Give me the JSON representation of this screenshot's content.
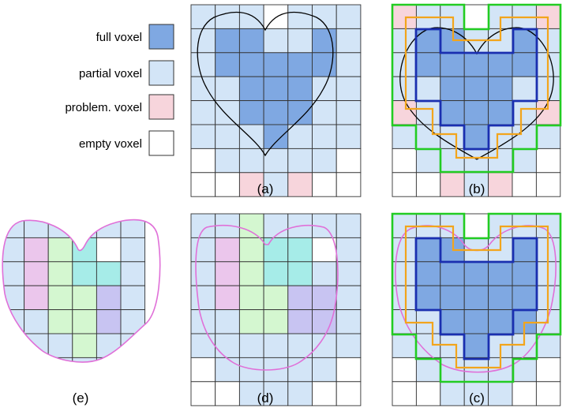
{
  "legend": {
    "items": [
      {
        "label": "full voxel",
        "color": "#7fa8e2"
      },
      {
        "label": "partial voxel",
        "color": "#d3e5f7"
      },
      {
        "label": "problem. voxel",
        "color": "#f7d5dc"
      },
      {
        "label": "empty voxel",
        "color": "#ffffff"
      }
    ]
  },
  "panels": [
    {
      "label": "(a)"
    },
    {
      "label": "(b)"
    },
    {
      "label": "(c)"
    },
    {
      "label": "(d)"
    },
    {
      "label": "(e)"
    }
  ],
  "colors": {
    "full": "#7fa8e2",
    "partial": "#d3e5f7",
    "problem": "#f7d5dc",
    "empty": "#ffffff",
    "grid": "#333333",
    "heart_outline": "#000000",
    "green_boundary": "#22cc22",
    "orange_boundary": "#f2a51c",
    "blue_boundary": "#1a2fb0",
    "smooth_curve": "#e070d8",
    "region_magenta": "#ebc6ec",
    "region_green": "#d4f7d0",
    "region_cyan": "#a6ece8",
    "region_purple": "#c8c4f2"
  },
  "grids": {
    "a": [
      "PPPEPPP",
      "PFFPPFP",
      "PFFFFFP",
      "PPFFFPP",
      "PPFFFPP",
      "PPPFPPP",
      "EPPPPPE",
      "EEXPXEE"
    ],
    "b": [
      "XPPEPPX",
      "PFFPPFP",
      "PFFFFFP",
      "PPFFFPP",
      "XPFFFPX",
      "PPPFPPP",
      "EPPPPPE",
      "EEXPXEE"
    ],
    "c": [
      "PPPEPPP",
      "PFFPPFP",
      "PFFFFFP",
      "PFFFFFP",
      "PPFFFFP",
      "PPPFPPP",
      "EPPPPPE",
      "EEPPPEE"
    ],
    "d": [
      "PPGPPPP",
      "PMGCCEP",
      "PMGCCPP",
      "PMGGUUP",
      "PPGGUUP",
      "PPPPPPP",
      "EPPPPPE",
      "EEPPPEE"
    ],
    "e": [
      "PPPPPP",
      "PMGCEP",
      "PMGCCP",
      "PMGGUP",
      "PPGGUP",
      "PPPGPP",
      "EPPPPE"
    ]
  }
}
